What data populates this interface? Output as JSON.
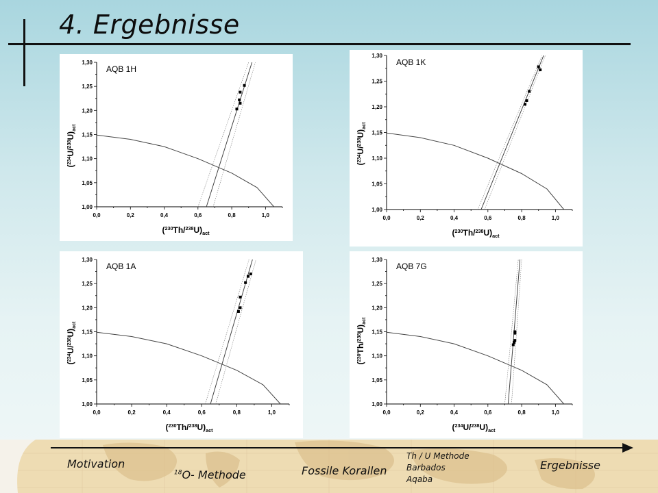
{
  "slide": {
    "title": "4. Ergebnisse"
  },
  "colors": {
    "background_top": "#a9d6df",
    "background_bottom": "#f1f8f8",
    "footer_map": "#eedcb3",
    "plot_line": "#444444",
    "data_point": "#000000"
  },
  "nav": {
    "motivation": "Motivation",
    "o18_sup": "18",
    "o18": "O- Methode",
    "fossile": "Fossile Korallen",
    "thu_lines": [
      "Th / U Methode",
      "Barbados",
      "Aqaba"
    ],
    "ergebnisse": "Ergebnisse",
    "arrow_icon": "arrow-right-icon"
  },
  "chart_data": [
    {
      "type": "scatter",
      "label": "AQB 1H",
      "xlabel": {
        "pre": "(",
        "sup1": "230",
        "m1": "Th/",
        "sup2": "238",
        "m2": "U)",
        "sub": "act"
      },
      "ylabel": {
        "pre": "(",
        "sup1": "234",
        "m1": "U/",
        "sup2": "238",
        "m2": "U)",
        "sub": "act"
      },
      "xlim": [
        0.0,
        1.1
      ],
      "ylim": [
        1.0,
        1.3
      ],
      "xticks": [
        "0,0",
        "0,2",
        "0,4",
        "0,6",
        "0,8",
        "1,0"
      ],
      "yticks": [
        "1,00",
        "1,05",
        "1,10",
        "1,15",
        "1,20",
        "1,25",
        "1,30"
      ],
      "points": [
        [
          0.83,
          1.203
        ],
        [
          0.845,
          1.222
        ],
        [
          0.85,
          1.215
        ],
        [
          0.85,
          1.238
        ],
        [
          0.875,
          1.252
        ]
      ],
      "fit_line": [
        [
          0.65,
          1.0
        ],
        [
          0.92,
          1.3
        ]
      ],
      "error_lines": [
        [
          [
            0.6,
            1.0
          ],
          [
            0.9,
            1.3
          ]
        ],
        [
          [
            0.69,
            1.0
          ],
          [
            0.94,
            1.3
          ]
        ]
      ],
      "curve": [
        [
          0.0,
          1.149
        ],
        [
          0.2,
          1.14
        ],
        [
          0.4,
          1.125
        ],
        [
          0.6,
          1.1
        ],
        [
          0.8,
          1.07
        ],
        [
          0.95,
          1.04
        ],
        [
          1.05,
          1.0
        ]
      ]
    },
    {
      "type": "scatter",
      "label": "AQB 1K",
      "xlabel": {
        "pre": "(",
        "sup1": "230",
        "m1": "Th/",
        "sup2": "238",
        "m2": "U)",
        "sub": "act"
      },
      "ylabel": {
        "pre": "(",
        "sup1": "234",
        "m1": "U/",
        "sup2": "238",
        "m2": "U)",
        "sub": "act"
      },
      "xlim": [
        0.0,
        1.1
      ],
      "ylim": [
        1.0,
        1.3
      ],
      "xticks": [
        "0,0",
        "0,2",
        "0,4",
        "0,6",
        "0,8",
        "1,0"
      ],
      "yticks": [
        "1,00",
        "1,05",
        "1,10",
        "1,15",
        "1,20",
        "1,25",
        "1,30"
      ],
      "points": [
        [
          0.82,
          1.205
        ],
        [
          0.83,
          1.212
        ],
        [
          0.845,
          1.23
        ],
        [
          0.9,
          1.278
        ],
        [
          0.91,
          1.272
        ]
      ],
      "fit_line": [
        [
          0.56,
          1.0
        ],
        [
          0.93,
          1.3
        ]
      ],
      "error_lines": [
        [
          [
            0.54,
            1.0
          ],
          [
            0.92,
            1.3
          ]
        ],
        [
          [
            0.58,
            1.0
          ],
          [
            0.94,
            1.3
          ]
        ]
      ],
      "curve": [
        [
          0.0,
          1.149
        ],
        [
          0.2,
          1.14
        ],
        [
          0.4,
          1.125
        ],
        [
          0.6,
          1.1
        ],
        [
          0.8,
          1.07
        ],
        [
          0.95,
          1.04
        ],
        [
          1.05,
          1.0
        ]
      ]
    },
    {
      "type": "scatter",
      "label": "AQB 1A",
      "xlabel": {
        "pre": "(",
        "sup1": "230",
        "m1": "Th/",
        "sup2": "238",
        "m2": "U)",
        "sub": "act"
      },
      "ylabel": {
        "pre": "(",
        "sup1": "234",
        "m1": "U/",
        "sup2": "238",
        "m2": "U)",
        "sub": "act"
      },
      "xlim": [
        0.0,
        1.1
      ],
      "ylim": [
        1.0,
        1.3
      ],
      "xticks": [
        "0,0",
        "0,2",
        "0,4",
        "0,6",
        "0,8",
        "1,0"
      ],
      "yticks": [
        "1,00",
        "1,05",
        "1,10",
        "1,15",
        "1,20",
        "1,25",
        "1,30"
      ],
      "points": [
        [
          0.81,
          1.192
        ],
        [
          0.82,
          1.2
        ],
        [
          0.82,
          1.222
        ],
        [
          0.85,
          1.252
        ],
        [
          0.865,
          1.265
        ],
        [
          0.88,
          1.27
        ]
      ],
      "fit_line": [
        [
          0.65,
          1.0
        ],
        [
          0.89,
          1.3
        ]
      ],
      "error_lines": [
        [
          [
            0.62,
            1.0
          ],
          [
            0.87,
            1.3
          ]
        ],
        [
          [
            0.68,
            1.0
          ],
          [
            0.91,
            1.3
          ]
        ]
      ],
      "curve": [
        [
          0.0,
          1.149
        ],
        [
          0.2,
          1.14
        ],
        [
          0.4,
          1.125
        ],
        [
          0.6,
          1.1
        ],
        [
          0.8,
          1.07
        ],
        [
          0.95,
          1.04
        ],
        [
          1.05,
          1.0
        ]
      ]
    },
    {
      "type": "scatter",
      "label": "AQB 7G",
      "xlabel": {
        "pre": "(",
        "sup1": "234",
        "m1": "U/",
        "sup2": "238",
        "m2": "U)",
        "sub": "act"
      },
      "ylabel": {
        "pre": "(",
        "sup1": "230",
        "m1": "Th/",
        "sup2": "238",
        "m2": "U)",
        "sub": "act"
      },
      "xlim": [
        0.0,
        1.1
      ],
      "ylim": [
        1.0,
        1.3
      ],
      "xticks": [
        "0,0",
        "0,2",
        "0,4",
        "0,6",
        "0,8",
        "1,0"
      ],
      "yticks": [
        "1,00",
        "1,05",
        "1,10",
        "1,15",
        "1,20",
        "1,25",
        "1,30"
      ],
      "points": [
        [
          0.75,
          1.123
        ],
        [
          0.755,
          1.128
        ],
        [
          0.76,
          1.132
        ],
        [
          0.76,
          1.15
        ],
        [
          0.76,
          1.147
        ]
      ],
      "fit_line": [
        [
          0.72,
          1.0
        ],
        [
          0.79,
          1.3
        ]
      ],
      "error_lines": [
        [
          [
            0.7,
            1.0
          ],
          [
            0.78,
            1.3
          ]
        ],
        [
          [
            0.74,
            1.0
          ],
          [
            0.8,
            1.3
          ]
        ]
      ],
      "curve": [
        [
          0.0,
          1.149
        ],
        [
          0.2,
          1.14
        ],
        [
          0.4,
          1.125
        ],
        [
          0.6,
          1.1
        ],
        [
          0.8,
          1.07
        ],
        [
          0.95,
          1.04
        ],
        [
          1.05,
          1.0
        ]
      ]
    }
  ]
}
